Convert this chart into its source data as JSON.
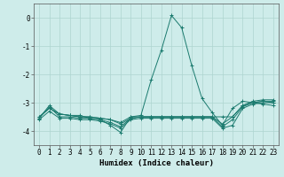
{
  "x": [
    0,
    1,
    2,
    3,
    4,
    5,
    6,
    7,
    8,
    9,
    10,
    11,
    12,
    13,
    14,
    15,
    16,
    17,
    18,
    19,
    20,
    21,
    22,
    23
  ],
  "lines": [
    [
      -3.5,
      -3.2,
      -3.4,
      -3.45,
      -3.45,
      -3.55,
      -3.6,
      -3.8,
      -4.05,
      -3.5,
      -3.45,
      -2.2,
      -1.15,
      0.08,
      -0.35,
      -1.7,
      -2.85,
      -3.35,
      -3.8,
      -3.2,
      -2.95,
      -3.0,
      -3.05,
      -3.1
    ],
    [
      -3.5,
      -3.2,
      -3.4,
      -3.45,
      -3.5,
      -3.5,
      -3.55,
      -3.6,
      -3.75,
      -3.55,
      -3.5,
      -3.5,
      -3.5,
      -3.5,
      -3.5,
      -3.5,
      -3.5,
      -3.5,
      -3.5,
      -3.5,
      -3.1,
      -3.0,
      -2.95,
      -3.0
    ],
    [
      -3.6,
      -3.3,
      -3.55,
      -3.55,
      -3.6,
      -3.6,
      -3.65,
      -3.75,
      -3.9,
      -3.6,
      -3.55,
      -3.55,
      -3.55,
      -3.55,
      -3.55,
      -3.55,
      -3.55,
      -3.55,
      -3.9,
      -3.8,
      -3.2,
      -3.05,
      -3.0,
      -3.0
    ],
    [
      -3.55,
      -3.1,
      -3.4,
      -3.45,
      -3.5,
      -3.5,
      -3.55,
      -3.6,
      -3.7,
      -3.5,
      -3.5,
      -3.5,
      -3.5,
      -3.5,
      -3.5,
      -3.5,
      -3.5,
      -3.5,
      -3.75,
      -3.5,
      -3.1,
      -2.95,
      -2.9,
      -2.9
    ],
    [
      -3.55,
      -3.15,
      -3.5,
      -3.5,
      -3.55,
      -3.55,
      -3.6,
      -3.7,
      -3.85,
      -3.55,
      -3.5,
      -3.5,
      -3.5,
      -3.5,
      -3.5,
      -3.5,
      -3.5,
      -3.5,
      -3.85,
      -3.6,
      -3.15,
      -3.0,
      -2.95,
      -2.95
    ]
  ],
  "line_color": "#1a7a6e",
  "marker": "+",
  "markersize": 3,
  "background_color": "#ceecea",
  "grid_color": "#aed4d0",
  "xlabel": "Humidex (Indice chaleur)",
  "ylim": [
    -4.5,
    0.5
  ],
  "xlim": [
    -0.5,
    23.5
  ],
  "yticks": [
    0,
    -1,
    -2,
    -3,
    -4
  ],
  "xticks": [
    0,
    1,
    2,
    3,
    4,
    5,
    6,
    7,
    8,
    9,
    10,
    11,
    12,
    13,
    14,
    15,
    16,
    17,
    18,
    19,
    20,
    21,
    22,
    23
  ],
  "axis_fontsize": 6.5,
  "tick_fontsize": 5.5
}
